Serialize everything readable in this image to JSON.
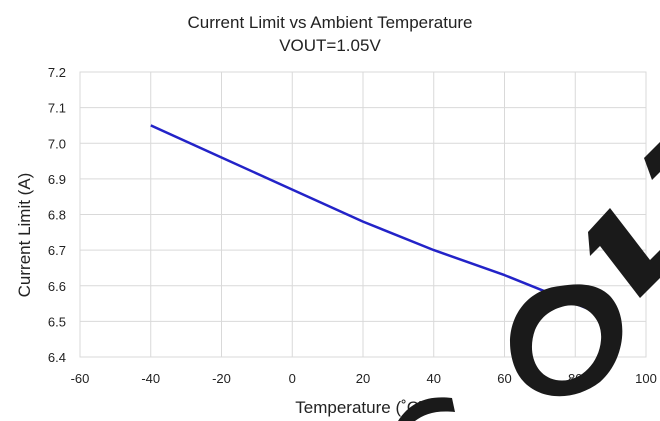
{
  "chart_data": {
    "type": "line",
    "title": "Current Limit vs Ambient Temperature",
    "subtitle": "VOUT=1.05V",
    "xlabel": "Temperature (˚C)",
    "ylabel": "Current Limit (A)",
    "xlim": [
      -60,
      100
    ],
    "ylim": [
      6.4,
      7.2
    ],
    "x_ticks": [
      "-60",
      "-40",
      "-20",
      "0",
      "20",
      "40",
      "60",
      "80",
      "100"
    ],
    "y_ticks": [
      "6.4",
      "6.5",
      "6.6",
      "6.7",
      "6.8",
      "6.9",
      "7.0",
      "7.1",
      "7.2"
    ],
    "grid": true,
    "legend": "none",
    "series": [
      {
        "color": "#2323c8",
        "x": [
          -40,
          -20,
          0,
          20,
          40,
          60,
          85
        ],
        "y": [
          7.05,
          6.96,
          6.87,
          6.78,
          6.7,
          6.63,
          6.53
        ]
      }
    ]
  },
  "watermark": {
    "text": "CONFIDENTIAL",
    "color": "#1a1a1a"
  }
}
